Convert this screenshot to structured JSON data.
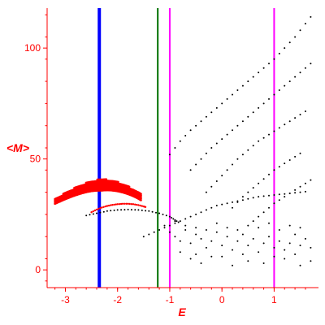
{
  "chart_data": {
    "type": "scatter",
    "xlabel": "E",
    "ylabel": "<M>",
    "xlim": [
      -3.35,
      1.85
    ],
    "ylim": [
      -8,
      118
    ],
    "xticks": [
      -3,
      -2,
      -1,
      0,
      1
    ],
    "yticks": [
      0,
      50,
      100
    ],
    "tick_labels_x": [
      "-3",
      "-2",
      "-1",
      "0",
      "1"
    ],
    "tick_labels_y": [
      "0",
      "50",
      "100"
    ],
    "grid": false,
    "colors": {
      "axes": "#ff0000",
      "points_black": "#000000",
      "points_red": "#ff0000",
      "line_blue": "#0000ff",
      "line_green": "#007000",
      "line_magenta": "#ff00ff"
    },
    "vertical_lines": [
      {
        "x": -2.35,
        "color": "#0000ff",
        "width": "thick"
      },
      {
        "x": -1.23,
        "color": "#007000",
        "width": "thin"
      },
      {
        "x": -1.0,
        "color": "#ff00ff",
        "width": "thin"
      },
      {
        "x": 1.0,
        "color": "#ff00ff",
        "width": "thin"
      }
    ],
    "red_upper_arc": [
      [
        -3.2,
        31
      ],
      [
        -3.1,
        32.2
      ],
      [
        -3.0,
        33.4
      ],
      [
        -2.9,
        34.5
      ],
      [
        -2.8,
        35.5
      ],
      [
        -2.7,
        36.4
      ],
      [
        -2.6,
        37.2
      ],
      [
        -2.5,
        37.8
      ],
      [
        -2.4,
        38.2
      ],
      [
        -2.3,
        38.4
      ],
      [
        -2.2,
        38.4
      ],
      [
        -2.1,
        38.1
      ],
      [
        -2.0,
        37.6
      ],
      [
        -1.9,
        36.9
      ],
      [
        -1.8,
        36.0
      ],
      [
        -1.7,
        34.9
      ],
      [
        -1.6,
        33.6
      ],
      [
        -1.55,
        32.8
      ]
    ],
    "red_lower_arc": [
      [
        -2.5,
        26
      ],
      [
        -2.4,
        27.2
      ],
      [
        -2.3,
        28.1
      ],
      [
        -2.2,
        28.8
      ],
      [
        -2.1,
        29.3
      ],
      [
        -2.0,
        29.6
      ],
      [
        -1.9,
        29.8
      ],
      [
        -1.8,
        29.8
      ],
      [
        -1.7,
        29.6
      ],
      [
        -1.6,
        29.2
      ],
      [
        -1.5,
        28.6
      ],
      [
        -1.45,
        28.2
      ]
    ],
    "black_arc": [
      [
        -2.6,
        24.5
      ],
      [
        -2.4,
        25.5
      ],
      [
        -2.2,
        26.5
      ],
      [
        -2.0,
        27
      ],
      [
        -1.8,
        27.2
      ],
      [
        -1.6,
        27
      ],
      [
        -1.4,
        26.5
      ],
      [
        -1.2,
        25.5
      ],
      [
        -1.0,
        24
      ],
      [
        -0.9,
        22.5
      ],
      [
        -0.8,
        21
      ]
    ],
    "black_curves": [
      [
        [
          -1.5,
          15
        ],
        [
          -1.3,
          17
        ],
        [
          -1.1,
          19
        ],
        [
          -0.9,
          21
        ],
        [
          -0.7,
          23
        ],
        [
          -0.5,
          25
        ],
        [
          -0.3,
          27
        ],
        [
          -0.1,
          29
        ],
        [
          0.1,
          30
        ],
        [
          0.3,
          31
        ],
        [
          0.5,
          32
        ],
        [
          0.7,
          33
        ],
        [
          0.9,
          33.5
        ],
        [
          1.1,
          34
        ],
        [
          1.3,
          34.5
        ],
        [
          1.5,
          35
        ],
        [
          1.7,
          35.5
        ]
      ],
      [
        [
          -1.0,
          52
        ],
        [
          -0.8,
          58
        ],
        [
          -0.6,
          63
        ],
        [
          -0.4,
          67
        ],
        [
          -0.2,
          71
        ],
        [
          0.0,
          75
        ],
        [
          0.2,
          79
        ],
        [
          0.4,
          83
        ],
        [
          0.6,
          87
        ],
        [
          0.8,
          91
        ],
        [
          1.0,
          95
        ],
        [
          1.2,
          100
        ],
        [
          1.4,
          105
        ],
        [
          1.6,
          111
        ],
        [
          1.8,
          117
        ]
      ],
      [
        [
          -0.6,
          45
        ],
        [
          -0.4,
          50
        ],
        [
          -0.2,
          55
        ],
        [
          0.0,
          59
        ],
        [
          0.2,
          63
        ],
        [
          0.4,
          67
        ],
        [
          0.6,
          71
        ],
        [
          0.8,
          75
        ],
        [
          1.0,
          79
        ],
        [
          1.2,
          83
        ],
        [
          1.4,
          87
        ],
        [
          1.6,
          91
        ],
        [
          1.8,
          95
        ]
      ],
      [
        [
          -0.3,
          35
        ],
        [
          -0.1,
          40
        ],
        [
          0.1,
          45
        ],
        [
          0.3,
          50
        ],
        [
          0.5,
          54
        ],
        [
          0.7,
          58
        ],
        [
          0.9,
          61
        ],
        [
          1.1,
          64
        ],
        [
          1.3,
          67
        ],
        [
          1.5,
          70
        ],
        [
          1.7,
          73
        ]
      ],
      [
        [
          0.2,
          28
        ],
        [
          0.4,
          33
        ],
        [
          0.6,
          37
        ],
        [
          0.8,
          41
        ],
        [
          1.0,
          45
        ],
        [
          1.2,
          48
        ],
        [
          1.4,
          51
        ],
        [
          1.6,
          54
        ]
      ],
      [
        [
          0.6,
          22
        ],
        [
          0.8,
          26
        ],
        [
          1.0,
          30
        ],
        [
          1.2,
          33
        ],
        [
          1.4,
          36
        ],
        [
          1.6,
          39
        ],
        [
          1.8,
          42
        ]
      ]
    ],
    "black_cluster": [
      [
        -1.1,
        20
      ],
      [
        -1.0,
        17
      ],
      [
        -0.9,
        15
      ],
      [
        -0.8,
        13
      ],
      [
        -0.7,
        18
      ],
      [
        -0.6,
        12
      ],
      [
        -0.5,
        16
      ],
      [
        -0.4,
        14
      ],
      [
        -0.3,
        10
      ],
      [
        -0.2,
        13
      ],
      [
        -0.1,
        17
      ],
      [
        0.0,
        11
      ],
      [
        0.1,
        15
      ],
      [
        0.2,
        9
      ],
      [
        0.3,
        13
      ],
      [
        0.4,
        16
      ],
      [
        0.5,
        11
      ],
      [
        0.6,
        14
      ],
      [
        0.7,
        8
      ],
      [
        0.8,
        12
      ],
      [
        0.9,
        15
      ],
      [
        1.0,
        10
      ],
      [
        1.1,
        13
      ],
      [
        1.2,
        9
      ],
      [
        1.3,
        12
      ],
      [
        1.4,
        16
      ],
      [
        1.5,
        11
      ],
      [
        1.6,
        14
      ],
      [
        1.7,
        10
      ],
      [
        -0.9,
        22
      ],
      [
        -0.7,
        20
      ],
      [
        -0.5,
        19
      ],
      [
        -0.3,
        18
      ],
      [
        -0.1,
        21
      ],
      [
        0.1,
        19
      ],
      [
        0.3,
        18
      ],
      [
        0.5,
        20
      ],
      [
        0.7,
        19
      ],
      [
        0.9,
        21
      ],
      [
        1.1,
        18
      ],
      [
        1.3,
        20
      ],
      [
        1.5,
        19
      ],
      [
        -0.6,
        5
      ],
      [
        -0.4,
        3
      ],
      [
        -0.2,
        6
      ],
      [
        0.2,
        2
      ],
      [
        0.5,
        4
      ],
      [
        0.8,
        3
      ],
      [
        1.2,
        5
      ],
      [
        1.5,
        2
      ],
      [
        1.7,
        4
      ],
      [
        -0.8,
        8
      ],
      [
        -0.5,
        7
      ],
      [
        0.0,
        6
      ],
      [
        0.4,
        7
      ],
      [
        1.0,
        6
      ],
      [
        1.4,
        7
      ]
    ]
  }
}
